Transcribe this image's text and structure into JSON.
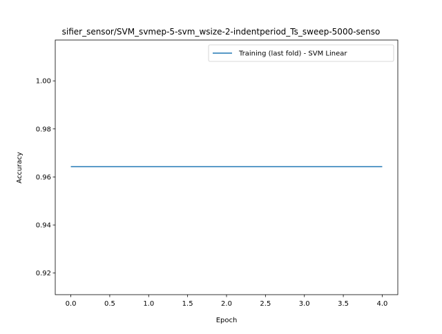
{
  "chart_data": {
    "type": "line",
    "title": "sifier_sensor/SVM_svmep-5-svm_wsize-2-indentperiod_Ts_sweep-5000-senso",
    "xlabel": "Epoch",
    "ylabel": "Accuracy",
    "xlim": [
      -0.2,
      4.2
    ],
    "ylim": [
      0.911,
      1.017
    ],
    "x_ticks": [
      0.0,
      0.5,
      1.0,
      1.5,
      2.0,
      2.5,
      3.0,
      3.5,
      4.0
    ],
    "x_tick_labels": [
      "0.0",
      "0.5",
      "1.0",
      "1.5",
      "2.0",
      "2.5",
      "3.0",
      "3.5",
      "4.0"
    ],
    "y_ticks": [
      0.92,
      0.94,
      0.96,
      0.98,
      1.0
    ],
    "y_tick_labels": [
      "0.92",
      "0.94",
      "0.96",
      "0.98",
      "1.00"
    ],
    "grid": false,
    "legend_position": "upper right",
    "series": [
      {
        "name": "Training (last fold) - SVM Linear",
        "color": "#1f77b4",
        "x": [
          0,
          1,
          2,
          3,
          4
        ],
        "y": [
          0.9643,
          0.9643,
          0.9643,
          0.9643,
          0.9643
        ]
      }
    ]
  }
}
